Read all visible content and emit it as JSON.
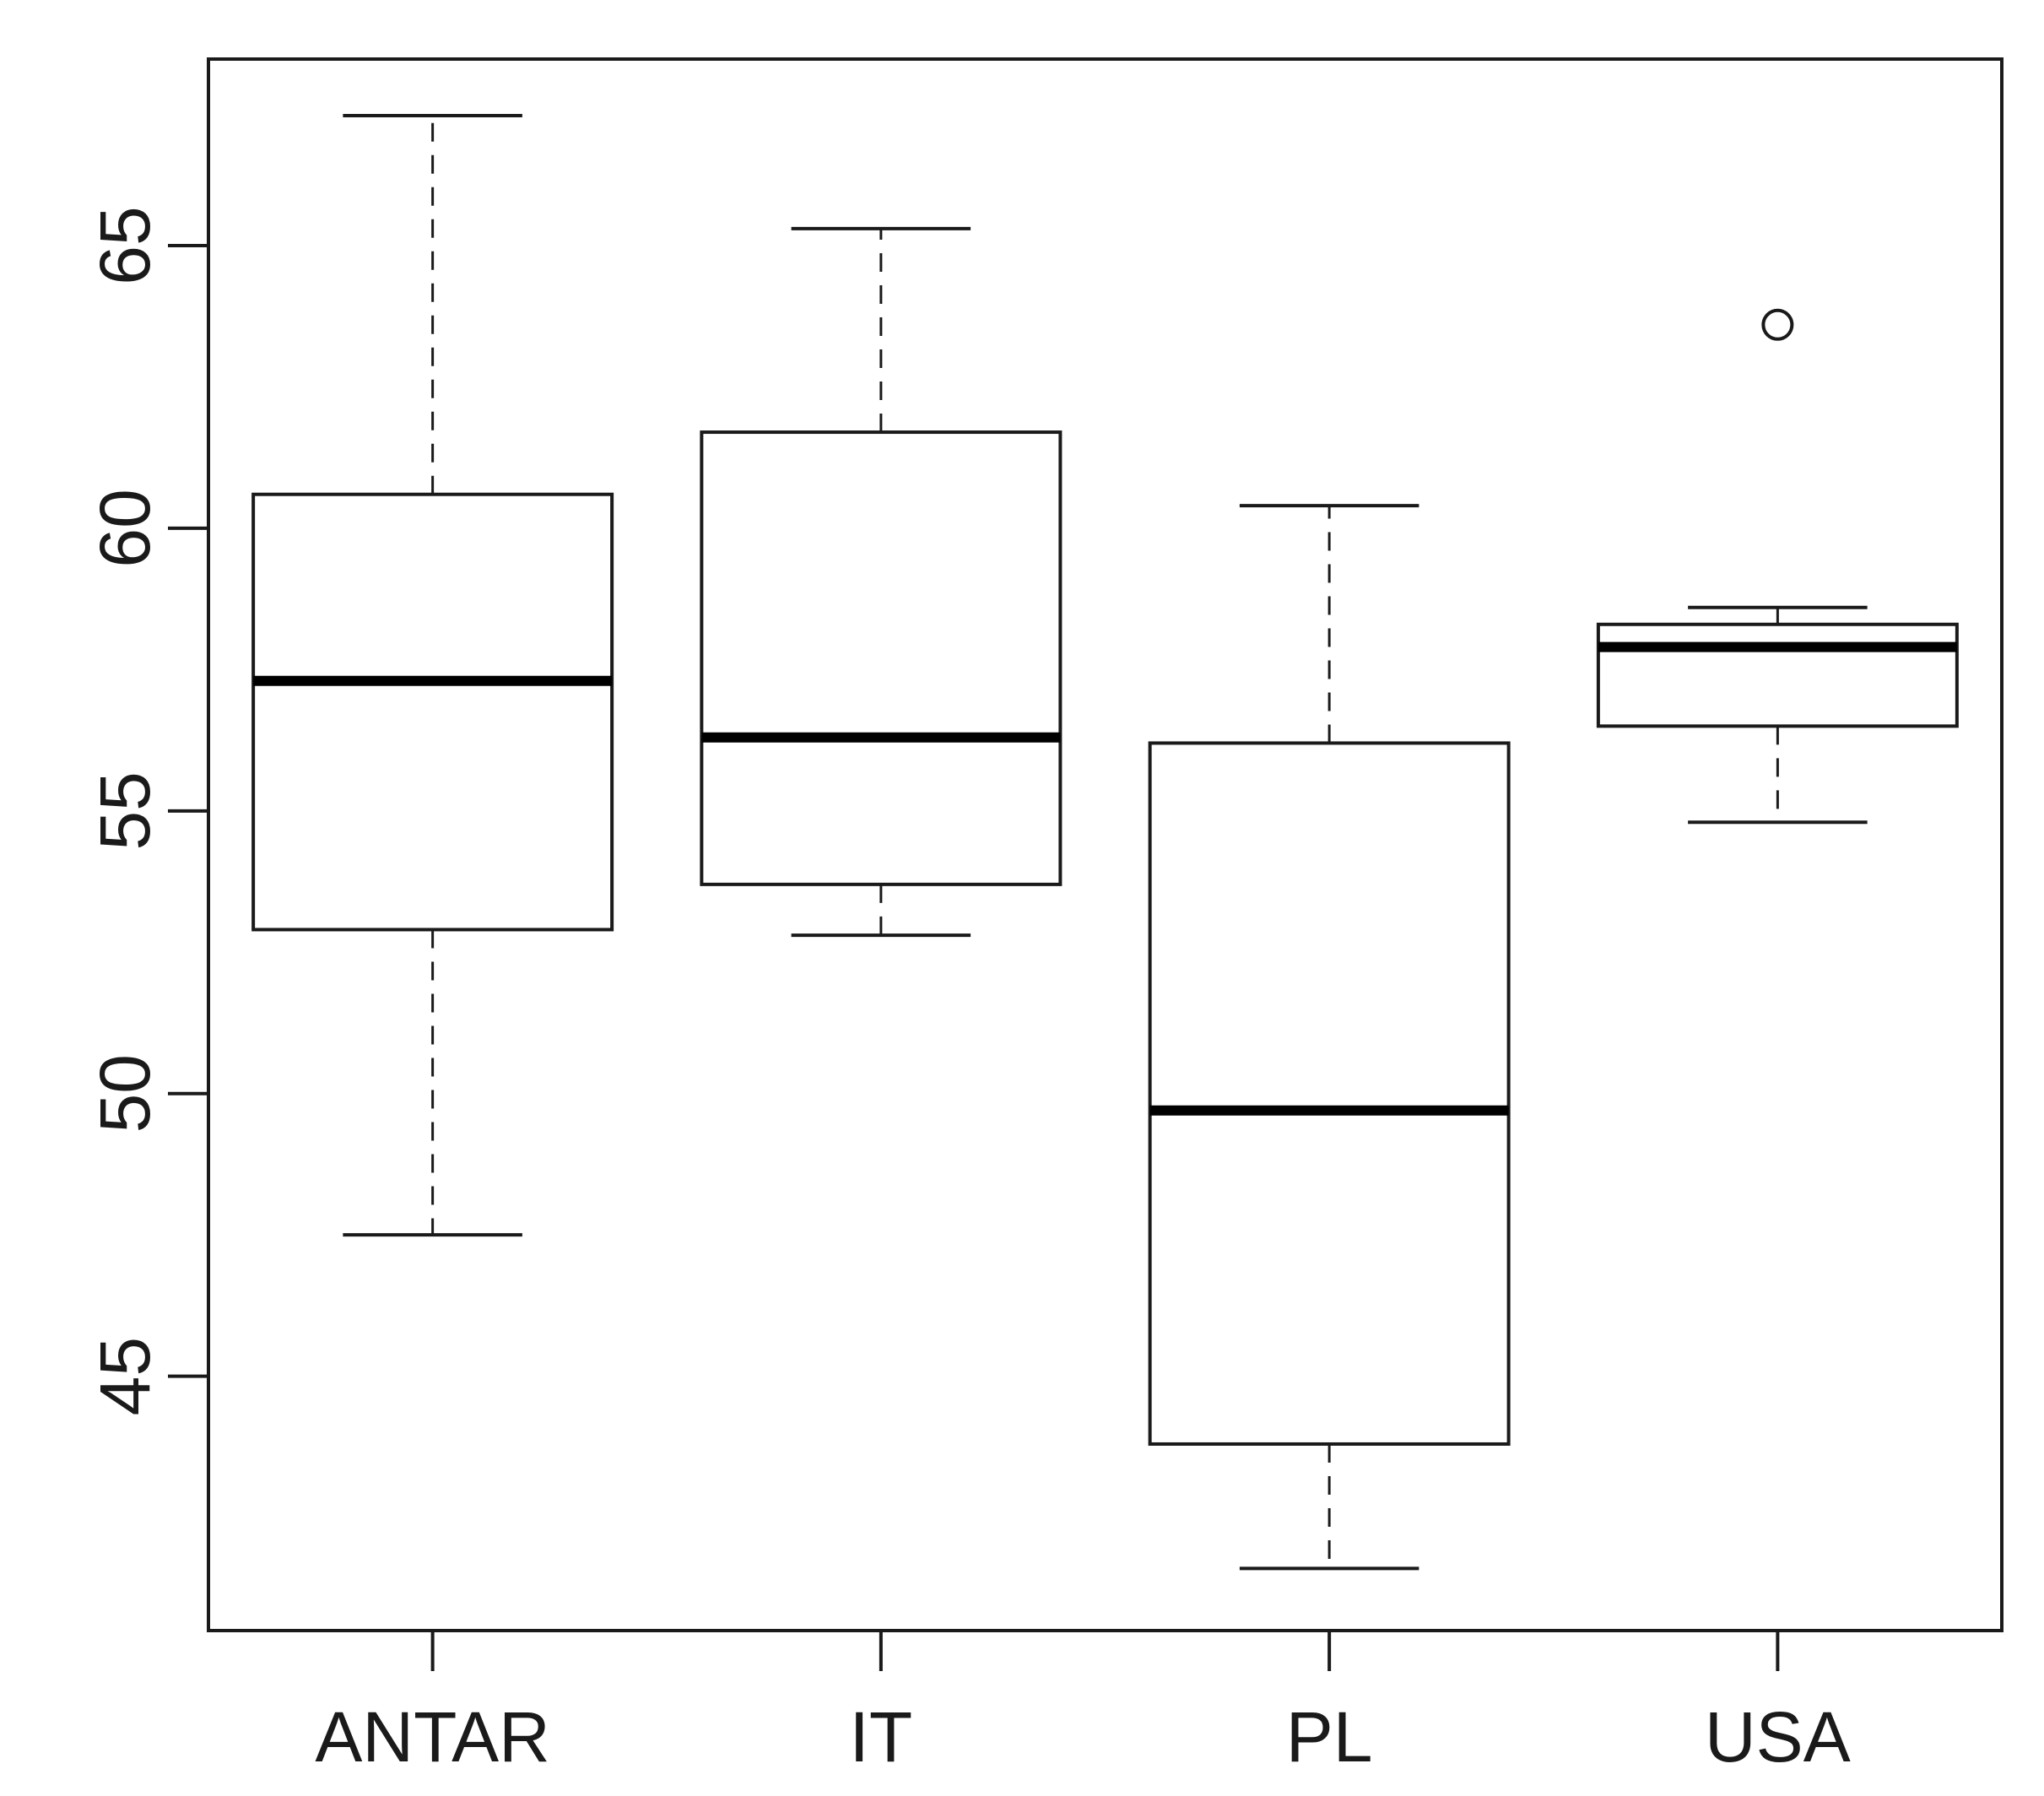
{
  "chart_data": {
    "type": "boxplot",
    "title": "",
    "xlabel": "",
    "ylabel": "",
    "categories": [
      "ANTAR",
      "IT",
      "PL",
      "USA"
    ],
    "ylim": [
      40.5,
      68.3
    ],
    "yticks": [
      45,
      50,
      55,
      60,
      65
    ],
    "ytick_labels": [
      "45",
      "50",
      "55",
      "60",
      "65"
    ],
    "grid": false,
    "legend": "none",
    "boxes": [
      {
        "name": "ANTAR",
        "whisker_low": 47.5,
        "q1": 52.9,
        "median": 57.3,
        "q3": 60.6,
        "whisker_high": 67.3,
        "outliers": []
      },
      {
        "name": "IT",
        "whisker_low": 52.8,
        "q1": 53.7,
        "median": 56.3,
        "q3": 61.7,
        "whisker_high": 65.3,
        "outliers": []
      },
      {
        "name": "PL",
        "whisker_low": 41.6,
        "q1": 43.8,
        "median": 49.7,
        "q3": 56.2,
        "whisker_high": 60.4,
        "outliers": []
      },
      {
        "name": "USA",
        "whisker_low": 54.8,
        "q1": 56.5,
        "median": 57.9,
        "q3": 58.3,
        "whisker_high": 58.6,
        "outliers": [
          63.6
        ]
      }
    ]
  }
}
